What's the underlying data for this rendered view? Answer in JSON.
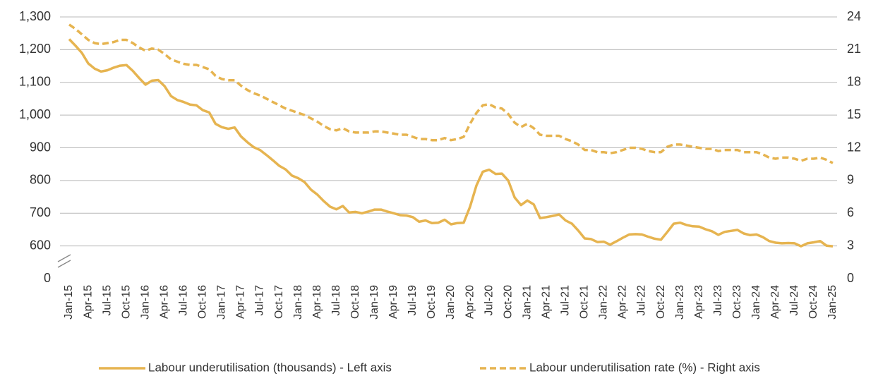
{
  "chart_data": {
    "type": "line",
    "categories": [
      "Jan-15",
      null,
      null,
      "Apr-15",
      null,
      null,
      "Jul-15",
      null,
      null,
      "Oct-15",
      null,
      null,
      "Jan-16",
      null,
      null,
      "Apr-16",
      null,
      null,
      "Jul-16",
      null,
      null,
      "Oct-16",
      null,
      null,
      "Jan-17",
      null,
      null,
      "Apr-17",
      null,
      null,
      "Jul-17",
      null,
      null,
      "Oct-17",
      null,
      null,
      "Jan-18",
      null,
      null,
      "Apr-18",
      null,
      null,
      "Jul-18",
      null,
      null,
      "Oct-18",
      null,
      null,
      "Jan-19",
      null,
      null,
      "Apr-19",
      null,
      null,
      "Jul-19",
      null,
      null,
      "Oct-19",
      null,
      null,
      "Jan-20",
      null,
      null,
      "Apr-20",
      null,
      null,
      "Jul-20",
      null,
      null,
      "Oct-20",
      null,
      null,
      "Jan-21",
      null,
      null,
      "Apr-21",
      null,
      null,
      "Jul-21",
      null,
      null,
      "Oct-21",
      null,
      null,
      "Jan-22",
      null,
      null,
      "Apr-22",
      null,
      null,
      "Jul-22",
      null,
      null,
      "Oct-22",
      null,
      null,
      "Jan-23",
      null,
      null,
      "Apr-23",
      null,
      null,
      "Jul-23",
      null,
      null,
      "Oct-23",
      null,
      null,
      "Jan-24",
      null,
      null,
      "Apr-24",
      null,
      null,
      "Jul-24",
      null,
      null,
      "Oct-24",
      null,
      null,
      "Jan-25"
    ],
    "series": [
      {
        "name": "Labour underutilisation (thousands) - Left axis",
        "color": "#e6b450",
        "dash": false,
        "axis": "y",
        "values": [
          1232,
          1212,
          1190,
          1158,
          1142,
          1133,
          1137,
          1145,
          1151,
          1153,
          1135,
          1113,
          1093,
          1105,
          1107,
          1088,
          1058,
          1046,
          1040,
          1032,
          1030,
          1015,
          1008,
          973,
          963,
          958,
          962,
          935,
          917,
          902,
          893,
          878,
          862,
          845,
          834,
          815,
          807,
          795,
          772,
          757,
          737,
          720,
          712,
          722,
          702,
          704,
          700,
          705,
          711,
          711,
          705,
          700,
          694,
          693,
          688,
          674,
          678,
          670,
          671,
          680,
          666,
          670,
          671,
          720,
          785,
          827,
          833,
          820,
          821,
          800,
          748,
          725,
          739,
          727,
          685,
          688,
          692,
          696,
          678,
          668,
          647,
          623,
          621,
          612,
          613,
          604,
          614,
          625,
          635,
          636,
          635,
          628,
          622,
          619,
          643,
          668,
          671,
          664,
          660,
          659,
          651,
          645,
          634,
          643,
          646,
          649,
          638,
          633,
          635,
          627,
          615,
          610,
          608,
          609,
          608,
          599,
          608,
          611,
          615,
          601,
          599
        ]
      },
      {
        "name": "Labour underutilisation rate (%) - Right axis",
        "color": "#e6b450",
        "dash": true,
        "axis": "y2",
        "values": [
          23.3,
          22.9,
          22.4,
          21.9,
          21.6,
          21.5,
          21.6,
          21.7,
          21.9,
          21.9,
          21.6,
          21.2,
          20.9,
          21.1,
          21.0,
          20.6,
          20.1,
          19.9,
          19.7,
          19.6,
          19.6,
          19.4,
          19.2,
          18.6,
          18.3,
          18.2,
          18.2,
          17.7,
          17.3,
          17.0,
          16.8,
          16.5,
          16.2,
          15.9,
          15.6,
          15.4,
          15.2,
          15.0,
          14.7,
          14.4,
          14.0,
          13.7,
          13.6,
          13.8,
          13.5,
          13.4,
          13.4,
          13.4,
          13.5,
          13.5,
          13.4,
          13.3,
          13.2,
          13.2,
          13.0,
          12.8,
          12.8,
          12.7,
          12.7,
          12.9,
          12.7,
          12.8,
          13.0,
          14.2,
          15.2,
          15.9,
          16.0,
          15.7,
          15.6,
          15.1,
          14.3,
          13.9,
          14.2,
          13.8,
          13.2,
          13.1,
          13.1,
          13.1,
          12.8,
          12.6,
          12.3,
          11.8,
          11.8,
          11.6,
          11.6,
          11.5,
          11.6,
          11.8,
          12.0,
          12.0,
          11.9,
          11.7,
          11.6,
          11.6,
          12.1,
          12.3,
          12.3,
          12.2,
          12.1,
          12.0,
          11.9,
          11.9,
          11.7,
          11.8,
          11.8,
          11.8,
          11.6,
          11.6,
          11.6,
          11.4,
          11.1,
          11.0,
          11.1,
          11.1,
          11.0,
          10.8,
          11.0,
          11.0,
          11.1,
          10.9,
          10.6
        ]
      }
    ],
    "ylim": [
      0,
      1300
    ],
    "yticks": [
      0,
      600,
      700,
      800,
      900,
      {
        "value": 1000,
        "label": "1,000"
      },
      {
        "value": 1100,
        "label": "1,100"
      },
      {
        "value": 1200,
        "label": "1,200"
      },
      {
        "value": 1300,
        "label": "1,300"
      }
    ],
    "axis_break": true,
    "y2lim": [
      0,
      24
    ],
    "y2ticks": [
      0,
      3,
      6,
      9,
      12,
      15,
      18,
      21,
      24
    ],
    "grid": true,
    "legend": "bottom"
  }
}
